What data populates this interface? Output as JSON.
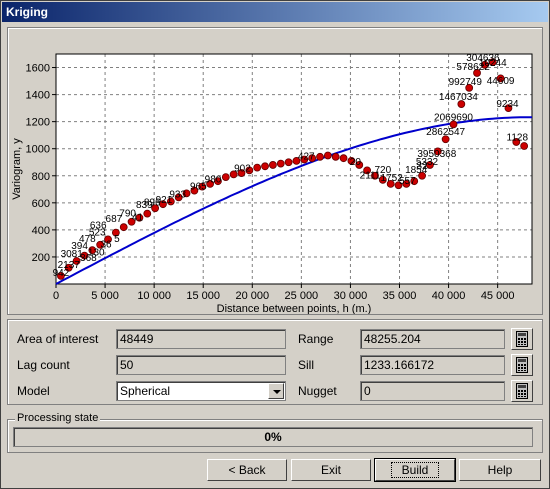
{
  "window": {
    "title": "Kriging"
  },
  "chart_data": {
    "type": "scatter",
    "xlabel": "Distance between points, h (m.)",
    "ylabel": "Variogram, y",
    "xlim": [
      0,
      48500
    ],
    "ylim": [
      0,
      1700
    ],
    "x_ticks": [
      0,
      5000,
      10000,
      15000,
      20000,
      25000,
      30000,
      35000,
      40000,
      45000
    ],
    "x_tick_labels": [
      "0",
      "5 000",
      "10 000",
      "15 000",
      "20 000",
      "25 000",
      "30 000",
      "35 000",
      "40 000",
      "45 000"
    ],
    "y_ticks": [
      200,
      400,
      600,
      800,
      1000,
      1200,
      1400,
      1600
    ],
    "y_tick_labels": [
      "200",
      "400",
      "600",
      "800",
      "1000",
      "1200",
      "1400",
      "1600"
    ],
    "grid": true,
    "series": [
      {
        "kind": "points",
        "x": [
          500,
          1300,
          2100,
          2900,
          3700,
          4500,
          5300,
          6100,
          6900,
          7700,
          8500,
          9300,
          10100,
          10900,
          11700,
          12500,
          13300,
          14100,
          14900,
          15700,
          16500,
          17300,
          18100,
          18900,
          19700,
          20500,
          21300,
          22100,
          22900,
          23700,
          24500,
          25300,
          26100,
          26900,
          27700,
          28500,
          29300,
          30100,
          30900,
          31700,
          32500,
          33300,
          34100,
          34900,
          35700,
          36500,
          37300,
          38100,
          38900,
          39700,
          40500,
          41300,
          42100,
          42900,
          43700,
          44500,
          45300,
          46100,
          46900,
          47700
        ],
        "y": [
          60,
          120,
          170,
          210,
          250,
          290,
          330,
          380,
          420,
          460,
          490,
          520,
          560,
          590,
          610,
          640,
          670,
          690,
          720,
          740,
          760,
          790,
          810,
          820,
          840,
          860,
          870,
          880,
          890,
          900,
          910,
          920,
          930,
          940,
          950,
          940,
          930,
          910,
          880,
          840,
          800,
          770,
          740,
          730,
          740,
          760,
          800,
          880,
          980,
          1070,
          1180,
          1330,
          1450,
          1560,
          1620,
          1640,
          1520,
          1300,
          1050,
          1020
        ],
        "point_labels": [
          {
            "x": 500,
            "y": 60,
            "text": "942"
          },
          {
            "x": 1300,
            "y": 120,
            "text": "2137"
          },
          {
            "x": 1600,
            "y": 200,
            "text": "3081"
          },
          {
            "x": 3300,
            "y": 170,
            "text": "368"
          },
          {
            "x": 2400,
            "y": 260,
            "text": "394"
          },
          {
            "x": 4100,
            "y": 210,
            "text": "130"
          },
          {
            "x": 3200,
            "y": 310,
            "text": "478"
          },
          {
            "x": 5100,
            "y": 270,
            "text": "36"
          },
          {
            "x": 4200,
            "y": 360,
            "text": "523"
          },
          {
            "x": 4300,
            "y": 410,
            "text": "636"
          },
          {
            "x": 6200,
            "y": 310,
            "text": "5"
          },
          {
            "x": 5900,
            "y": 460,
            "text": "687"
          },
          {
            "x": 7300,
            "y": 500,
            "text": "790"
          },
          {
            "x": 8300,
            "y": 470,
            "text": "41"
          },
          {
            "x": 9000,
            "y": 560,
            "text": "839"
          },
          {
            "x": 9800,
            "y": 580,
            "text": "896"
          },
          {
            "x": 11000,
            "y": 600,
            "text": "921"
          },
          {
            "x": 12400,
            "y": 640,
            "text": "933"
          },
          {
            "x": 14500,
            "y": 700,
            "text": "965"
          },
          {
            "x": 16000,
            "y": 750,
            "text": "980"
          },
          {
            "x": 19000,
            "y": 830,
            "text": "902"
          },
          {
            "x": 25500,
            "y": 920,
            "text": "427"
          },
          {
            "x": 30500,
            "y": 880,
            "text": "20"
          },
          {
            "x": 32000,
            "y": 780,
            "text": "2111"
          },
          {
            "x": 33300,
            "y": 820,
            "text": "720"
          },
          {
            "x": 34200,
            "y": 760,
            "text": "1752"
          },
          {
            "x": 35800,
            "y": 740,
            "text": "557"
          },
          {
            "x": 36700,
            "y": 820,
            "text": "1854"
          },
          {
            "x": 37300,
            "y": 850,
            "text": "32"
          },
          {
            "x": 37800,
            "y": 880,
            "text": "5332"
          },
          {
            "x": 38800,
            "y": 940,
            "text": "3950368"
          },
          {
            "x": 39700,
            "y": 1100,
            "text": "2862547"
          },
          {
            "x": 40500,
            "y": 1210,
            "text": "2069690"
          },
          {
            "x": 41000,
            "y": 1360,
            "text": "1467034"
          },
          {
            "x": 41700,
            "y": 1470,
            "text": "992749"
          },
          {
            "x": 42500,
            "y": 1580,
            "text": "578622"
          },
          {
            "x": 43500,
            "y": 1650,
            "text": "304636"
          },
          {
            "x": 44500,
            "y": 1610,
            "text": "10244"
          },
          {
            "x": 45300,
            "y": 1480,
            "text": "44609"
          },
          {
            "x": 46000,
            "y": 1310,
            "text": "9234"
          },
          {
            "x": 47000,
            "y": 1060,
            "text": "1128"
          }
        ]
      },
      {
        "kind": "model-curve",
        "model": "Spherical",
        "range": 48255.204,
        "sill": 1233.166172,
        "nugget": 0,
        "xmax": 48500
      }
    ]
  },
  "params": {
    "area_label": "Area of interest",
    "area_value": "48449",
    "lag_label": "Lag count",
    "lag_value": "50",
    "model_label": "Model",
    "model_value": "Spherical",
    "range_label": "Range",
    "range_value": "48255.204",
    "sill_label": "Sill",
    "sill_value": "1233.166172",
    "nugget_label": "Nugget",
    "nugget_value": "0"
  },
  "processing": {
    "legend": "Processing state",
    "progress_text": "0%",
    "progress": 0
  },
  "buttons": {
    "back": "< Back",
    "exit": "Exit",
    "build": "Build",
    "help": "Help"
  },
  "colors": {
    "point_fill": "#cc0000",
    "curve": "#0000cc",
    "plot_bg": "#ffffff"
  }
}
